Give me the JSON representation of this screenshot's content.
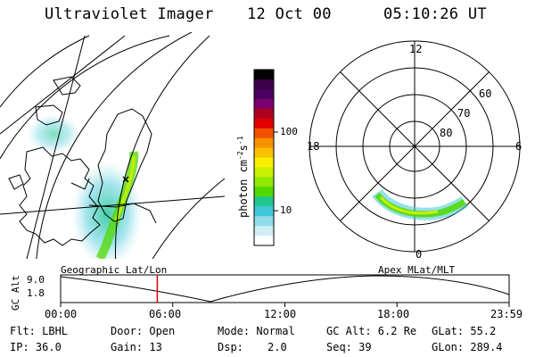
{
  "header": {
    "instrument": "Ultraviolet Imager",
    "date": "12 Oct 00",
    "time": "05:10:26 UT"
  },
  "colorbar": {
    "unit_label": "photon cm",
    "unit_exp1": "-2",
    "unit_s": "s",
    "unit_exp2": "-1",
    "ticks": [
      "100",
      "10"
    ],
    "colors": [
      "#000000",
      "#3a0048",
      "#4a0060",
      "#7a0070",
      "#b00020",
      "#e00000",
      "#f05000",
      "#f89000",
      "#f8c000",
      "#f8f000",
      "#c8f000",
      "#90e800",
      "#50d800",
      "#20c890",
      "#40c8d8",
      "#90dce8",
      "#d0ecf4",
      "#ffffff"
    ]
  },
  "polar_plot": {
    "mlt_labels": {
      "top": "12",
      "left": "18",
      "right": "6",
      "bottom": "0"
    },
    "lat_labels": [
      "60",
      "70",
      "80"
    ]
  },
  "timeline": {
    "label_left": "Geographic Lat/Lon",
    "label_right": "Apex MLat/MLT",
    "axis_title": "GC Alt",
    "y_max": "9.0",
    "y_min": "1.8",
    "time_ticks": [
      "00:00",
      "06:00",
      "12:00",
      "18:00",
      "23:59"
    ],
    "current_time_fraction": 0.2155
  },
  "info": {
    "flt": "Flt: LBHL",
    "ip": "IP: 36.0",
    "door": "Door: Open",
    "gain": "Gain: 13",
    "mode": "Mode: Normal",
    "dsp_label": "Dsp:",
    "dsp_value": "2.0",
    "gc_alt": "GC Alt: 6.2 Re",
    "seq": "Seq: 39",
    "glat": "GLat: 55.2",
    "glon": "GLon: 289.4"
  }
}
